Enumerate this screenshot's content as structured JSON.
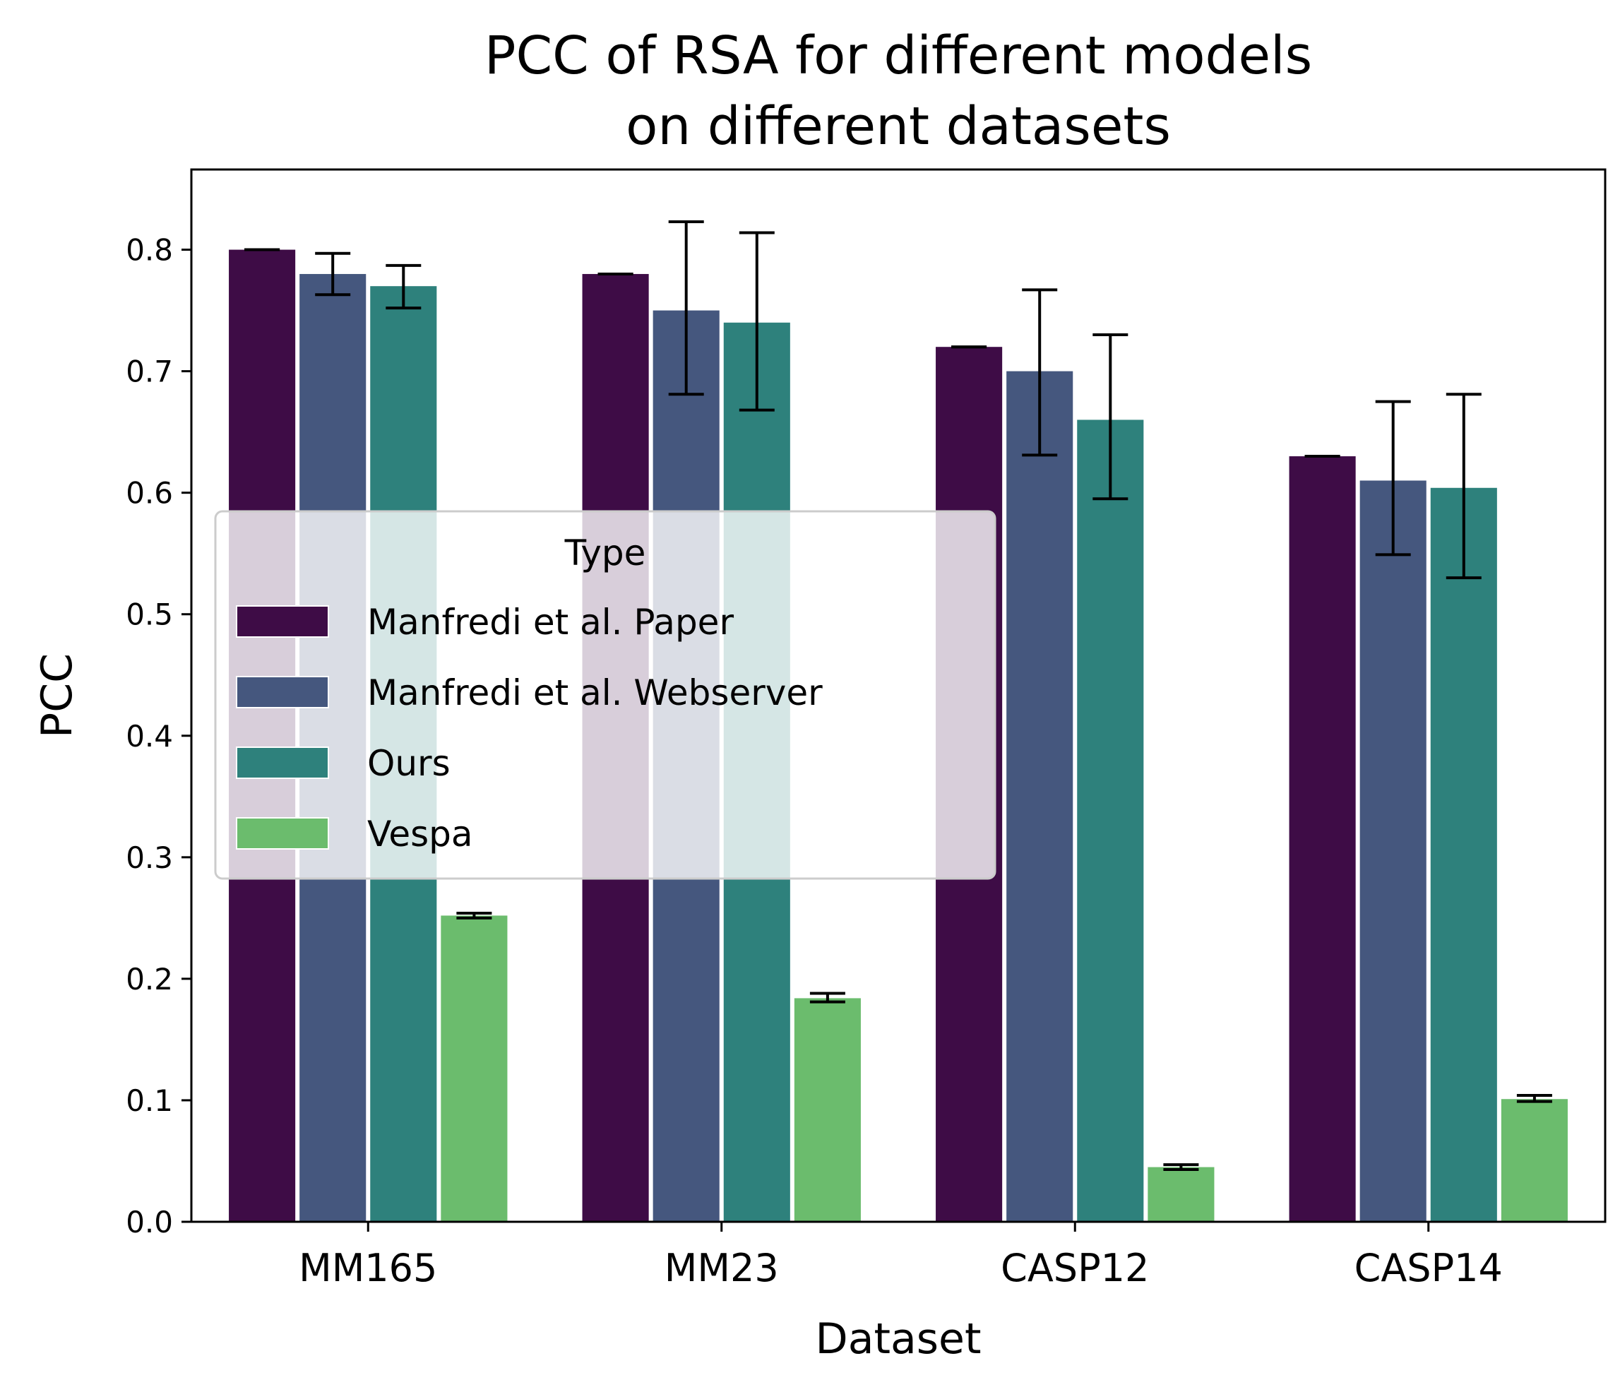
{
  "chart_data": {
    "type": "bar",
    "title": [
      "PCC of RSA for different models",
      "on different datasets"
    ],
    "xlabel": "Dataset",
    "ylabel": "PCC",
    "categories": [
      "MM165",
      "MM23",
      "CASP12",
      "CASP14"
    ],
    "ylim": [
      0,
      0.866
    ],
    "yticks": [
      "0.0",
      "0.1",
      "0.2",
      "0.3",
      "0.4",
      "0.5",
      "0.6",
      "0.7",
      "0.8"
    ],
    "legend": {
      "title": "Type",
      "position": "center-left"
    },
    "series": [
      {
        "name": "Manfredi et al. Paper",
        "color": "#3e0c46",
        "values": [
          0.8,
          0.78,
          0.72,
          0.63
        ],
        "err_low": [
          0.8,
          0.78,
          0.72,
          0.63
        ],
        "err_high": [
          0.8,
          0.78,
          0.72,
          0.63
        ]
      },
      {
        "name": "Manfredi et al. Webserver",
        "color": "#45577e",
        "values": [
          0.78,
          0.75,
          0.7,
          0.61
        ],
        "err_low": [
          0.763,
          0.681,
          0.631,
          0.549
        ],
        "err_high": [
          0.797,
          0.823,
          0.767,
          0.675
        ]
      },
      {
        "name": "Ours",
        "color": "#2e817c",
        "values": [
          0.77,
          0.74,
          0.66,
          0.604
        ],
        "err_low": [
          0.752,
          0.668,
          0.595,
          0.53
        ],
        "err_high": [
          0.787,
          0.814,
          0.73,
          0.681
        ]
      },
      {
        "name": "Vespa",
        "color": "#6bbc6d",
        "values": [
          0.252,
          0.184,
          0.045,
          0.101
        ],
        "err_low": [
          0.25,
          0.181,
          0.043,
          0.099
        ],
        "err_high": [
          0.254,
          0.188,
          0.047,
          0.104
        ]
      }
    ],
    "grid": false
  }
}
